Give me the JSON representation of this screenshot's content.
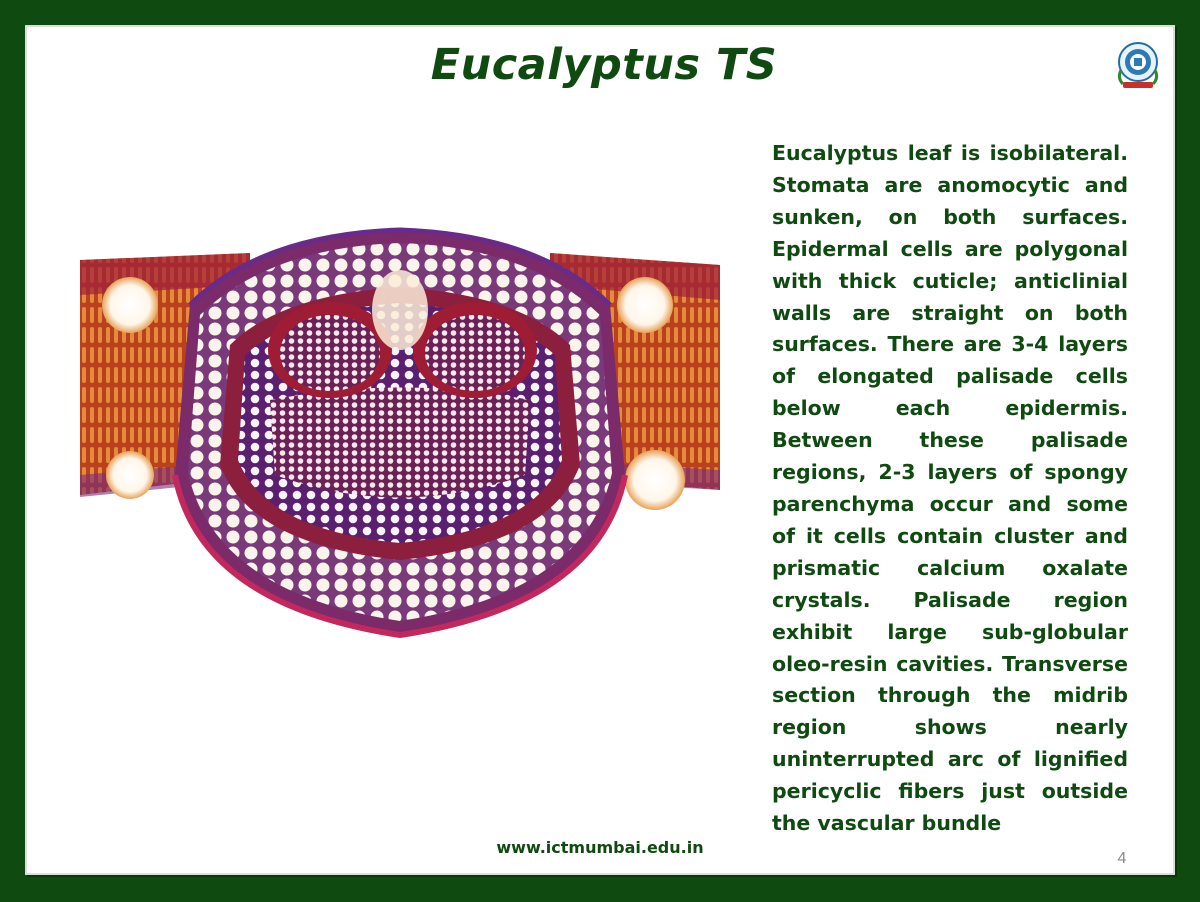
{
  "slide": {
    "title": "Eucalyptus TS",
    "description": "Eucalyptus leaf is isobilateral. Stomata are anomocytic and sunken, on both surfaces. Epidermal cells are polygonal with thick cuticle; anticlinial walls are straight on both surfaces. There are 3-4 layers of elongated palisade cells below each epidermis. Between these palisade regions, 2-3 layers of spongy parenchyma occur and some of it cells contain cluster and prismatic calcium oxalate crystals. Palisade region exhibit large sub-globular oleo-resin cavities.  Transverse section through the midrib region shows nearly uninterrupted arc of lignified pericyclic fibers just outside the vascular bundle",
    "footer_url": "www.ictmumbai.edu.in",
    "page_number": "4"
  },
  "colors": {
    "frame": "#0f4a10",
    "title": "#0f4a10",
    "text": "#0f4a10",
    "page_number": "#8a8a8a"
  },
  "image": {
    "icon": "micrograph-eucalyptus-leaf-ts"
  },
  "logo": {
    "icon": "ict-logo-icon"
  }
}
